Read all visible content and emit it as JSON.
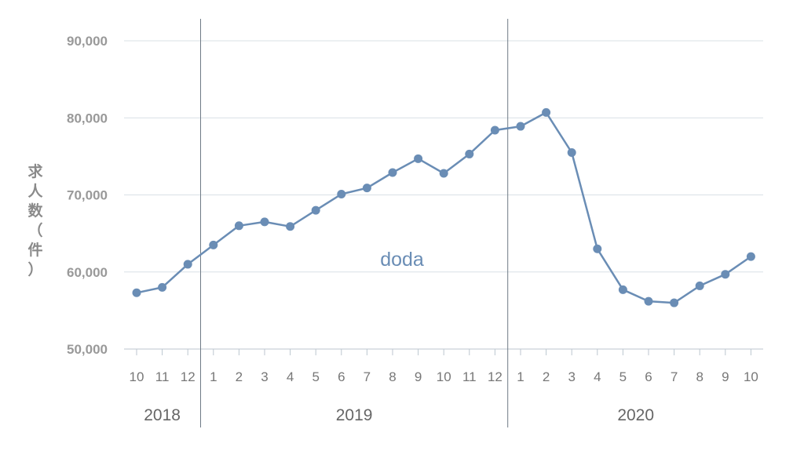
{
  "chart_data": {
    "type": "line",
    "ylabel": "求人数（件）",
    "ylim": [
      50000,
      90000
    ],
    "yticks": [
      50000,
      60000,
      70000,
      80000,
      90000
    ],
    "ytick_labels": [
      "50,000",
      "60,000",
      "70,000",
      "80,000",
      "90,000"
    ],
    "grid": true,
    "line_color": "#6a8db5",
    "x_month_labels": [
      "10",
      "11",
      "12",
      "1",
      "2",
      "3",
      "4",
      "5",
      "6",
      "7",
      "8",
      "9",
      "10",
      "11",
      "12",
      "1",
      "2",
      "3",
      "4",
      "5",
      "6",
      "7",
      "8",
      "9",
      "10"
    ],
    "year_groups": [
      {
        "label": "2018",
        "start": 0,
        "end": 2
      },
      {
        "label": "2019",
        "start": 3,
        "end": 14
      },
      {
        "label": "2020",
        "start": 15,
        "end": 24
      }
    ],
    "series": [
      {
        "name": "doda",
        "values": [
          57300,
          58000,
          61000,
          63500,
          66000,
          66500,
          65900,
          68000,
          70100,
          70900,
          72900,
          74700,
          72800,
          75300,
          78400,
          78900,
          80700,
          75500,
          63000,
          57700,
          56200,
          56000,
          58200,
          59700,
          62000
        ]
      }
    ]
  }
}
